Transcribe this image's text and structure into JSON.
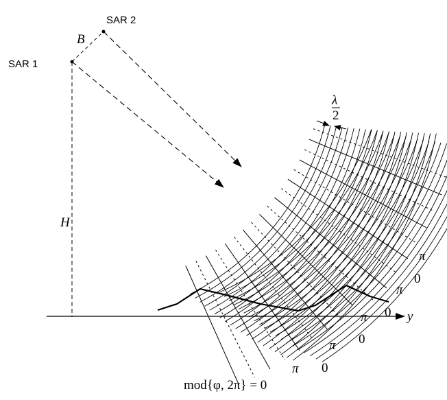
{
  "labels": {
    "sar1": "SAR 1",
    "sar2": "SAR 2",
    "baseline": "B",
    "height": "H",
    "wavelength_num": "λ",
    "wavelength_den": "2",
    "axis": "y",
    "phase_eq": "mod{φ, 2π} = 0"
  },
  "fringe_labels": [
    "π",
    "0",
    "π",
    "0",
    "π",
    "0",
    "π",
    "0"
  ]
}
